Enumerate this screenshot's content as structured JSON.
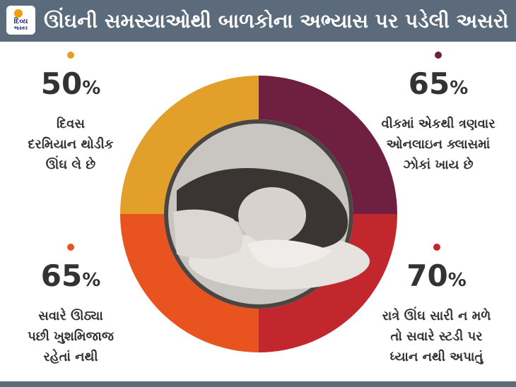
{
  "header": {
    "title": "ઊંઘની સમસ્યાઓથી બાળકોના અભ્યાસ પર પડેલી અસરો",
    "logo_top": "દિવ્ય",
    "logo_bottom": "ભાસ્કર"
  },
  "colors": {
    "header_bg": "#5b6b7c",
    "accent_gold": "#e2a02a",
    "accent_maroon": "#6f1f3f",
    "accent_red": "#c1272d",
    "accent_orange": "#e9531f"
  },
  "stats": [
    {
      "id": "top-left",
      "percent": "50",
      "sign": "%",
      "lines": [
        "દિવસ",
        "દરમિયાન થોડીક",
        "ઊંઘ લે છે"
      ],
      "color": "#e2a02a"
    },
    {
      "id": "top-right",
      "percent": "65",
      "sign": "%",
      "lines": [
        "વીકમાં એકથી ત્રણવાર",
        "ઓનલાઇન ક્લાસમાં",
        "ઝોકાં ખાય છે"
      ],
      "color": "#6f1f3f"
    },
    {
      "id": "bottom-left",
      "percent": "65",
      "sign": "%",
      "lines": [
        "સવારે ઊઠ્યા",
        "પછી ખુશમિજાજ",
        "રહેતાં નથી"
      ],
      "color": "#e9531f"
    },
    {
      "id": "bottom-right",
      "percent": "70",
      "sign": "%",
      "lines": [
        "રાત્રે ઊંઘ સારી ન મળે",
        "તો સવારે સ્ટડી પર",
        "ધ્યાન નથી અપાતું"
      ],
      "color": "#c1272d"
    }
  ],
  "chart_data": {
    "type": "pie",
    "categories": [
      "દિવસ દરમિયાન થોડીક ઊંઘ લે છે",
      "વીકમાં એકથી ત્રણવાર ઓનલાઇન ક્લાસમાં ઝોકાં ખાય છે",
      "રાત્રે ઊંઘ સારી ન મળે તો સવારે સ્ટડી પર ધ્યાન નથી અપાતું",
      "સવારે ઊઠ્યા પછી ખુશમિજાજ રહેતાં નથી"
    ],
    "values": [
      50,
      65,
      70,
      65
    ],
    "colors": [
      "#e2a02a",
      "#6f1f3f",
      "#c1272d",
      "#e9531f"
    ]
  }
}
